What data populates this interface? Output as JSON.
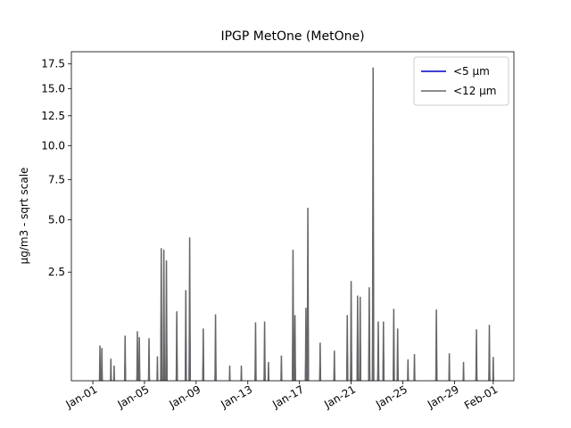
{
  "chart_data": {
    "type": "line",
    "title": "IPGP MetOne (MetOne)",
    "ylabel": "µg/m3 - sqrt scale",
    "yscale": "sqrt",
    "legend": "upper right",
    "x": [
      0.5,
      0.55,
      0.6,
      0.65,
      0.7,
      0.75,
      1.35,
      1.4,
      1.45,
      1.6,
      1.65,
      1.7,
      2.45,
      2.5,
      2.55,
      3.4,
      3.45,
      3.5,
      3.55,
      3.6,
      3.65,
      4.3,
      4.35,
      4.4,
      4.95,
      5.0,
      5.05,
      5.25,
      5.3,
      5.35,
      5.45,
      5.5,
      5.55,
      5.65,
      5.7,
      5.75,
      6.45,
      6.5,
      6.55,
      7.15,
      7.2,
      7.25,
      7.45,
      7.5,
      7.55,
      8.5,
      8.55,
      8.6,
      9.45,
      9.5,
      9.55,
      10.55,
      10.6,
      10.65,
      11.45,
      11.5,
      11.55,
      12.55,
      12.6,
      12.65,
      13.25,
      13.3,
      13.35,
      13.55,
      13.6,
      13.65,
      14.55,
      14.6,
      14.65,
      15.45,
      15.5,
      15.55,
      15.6,
      15.65,
      15.7,
      16.45,
      16.5,
      16.55,
      16.6,
      16.65,
      16.7,
      17.55,
      17.6,
      17.65,
      18.65,
      18.7,
      18.75,
      19.65,
      19.7,
      19.75,
      19.95,
      20.0,
      20.05,
      20.45,
      20.5,
      20.55,
      20.65,
      20.7,
      20.75,
      21.35,
      21.4,
      21.45,
      21.65,
      21.7,
      21.75,
      22.05,
      22.1,
      22.15,
      22.45,
      22.5,
      22.55,
      23.25,
      23.3,
      23.35,
      23.55,
      23.6,
      23.65,
      24.35,
      24.4,
      24.45,
      24.85,
      24.9,
      24.95,
      26.55,
      26.6,
      26.65,
      27.55,
      27.6,
      27.65,
      28.65,
      28.7,
      28.75,
      29.65,
      29.7,
      29.75,
      30.65,
      30.7,
      30.75,
      30.95,
      31.0,
      31.05
    ],
    "series": [
      {
        "name": "<5 µm",
        "color": "#0000cc",
        "values": [
          0,
          0.13,
          0,
          0,
          0.12,
          0,
          0,
          0.08,
          0,
          0,
          0.05,
          0,
          0,
          0.19,
          0,
          0,
          0.21,
          0,
          0,
          0.18,
          0,
          0,
          0.17,
          0,
          0,
          0.08,
          0,
          0,
          1.06,
          0,
          0,
          1.04,
          0,
          0,
          0.89,
          0,
          0,
          0.36,
          0,
          0,
          0.55,
          0,
          0,
          1.22,
          0,
          0,
          0.23,
          0,
          0,
          0.33,
          0,
          0,
          0.05,
          0,
          0,
          0.05,
          0,
          0,
          0.27,
          0,
          0,
          0.28,
          0,
          0,
          0.06,
          0,
          0,
          0.09,
          0,
          0,
          1.04,
          0,
          0,
          0.33,
          0,
          0,
          0.39,
          0,
          0,
          1.71,
          0,
          0,
          0.15,
          0,
          0,
          0.11,
          0,
          0,
          0.33,
          0,
          0,
          0.65,
          0,
          0,
          0.5,
          0,
          0,
          0.49,
          0,
          0,
          0.58,
          0,
          0,
          5.14,
          0,
          0,
          0.28,
          0,
          0,
          0.28,
          0,
          0,
          0.38,
          0,
          0,
          0.23,
          0,
          0,
          0.07,
          0,
          0,
          0.09,
          0,
          0,
          0.37,
          0,
          0,
          0.1,
          0,
          0,
          0.06,
          0,
          0,
          0.23,
          0,
          0,
          0.26,
          0,
          0,
          0.08,
          0
        ]
      },
      {
        "name": "<12 µm",
        "color": "#666666",
        "values": [
          0,
          0.44,
          0,
          0,
          0.4,
          0,
          0,
          0.25,
          0,
          0,
          0.17,
          0,
          0,
          0.62,
          0,
          0,
          0.71,
          0,
          0,
          0.59,
          0,
          0,
          0.57,
          0,
          0,
          0.28,
          0,
          0,
          3.54,
          0,
          0,
          3.46,
          0,
          0,
          2.98,
          0,
          0,
          1.19,
          0,
          0,
          1.84,
          0,
          0,
          4.06,
          0,
          0,
          0.77,
          0,
          0,
          1.11,
          0,
          0,
          0.17,
          0,
          0,
          0.17,
          0,
          0,
          0.91,
          0,
          0,
          0.93,
          0,
          0,
          0.21,
          0,
          0,
          0.29,
          0,
          0,
          3.46,
          0,
          0,
          1.09,
          0,
          0,
          1.29,
          0,
          0,
          5.69,
          0,
          0,
          0.49,
          0,
          0,
          0.36,
          0,
          0,
          1.09,
          0,
          0,
          2.16,
          0,
          0,
          1.66,
          0,
          0,
          1.62,
          0,
          0,
          1.94,
          0,
          0,
          17.14,
          0,
          0,
          0.93,
          0,
          0,
          0.93,
          0,
          0,
          1.26,
          0,
          0,
          0.77,
          0,
          0,
          0.24,
          0,
          0,
          0.31,
          0,
          0,
          1.24,
          0,
          0,
          0.32,
          0,
          0,
          0.21,
          0,
          0,
          0.75,
          0,
          0,
          0.85,
          0,
          0,
          0.27,
          0
        ]
      }
    ],
    "xlim": [
      -1.66,
      32.6
    ],
    "xticks": [
      {
        "value": 0,
        "label": "Jan-01"
      },
      {
        "value": 4,
        "label": "Jan-05"
      },
      {
        "value": 8,
        "label": "Jan-09"
      },
      {
        "value": 12,
        "label": "Jan-13"
      },
      {
        "value": 16,
        "label": "Jan-17"
      },
      {
        "value": 20,
        "label": "Jan-21"
      },
      {
        "value": 24,
        "label": "Jan-25"
      },
      {
        "value": 28,
        "label": "Jan-29"
      },
      {
        "value": 31,
        "label": "Feb-01"
      }
    ],
    "ylim": [
      0.05,
      18.8
    ],
    "yticks": [
      2.5,
      {
        "value": 5,
        "label": "5.0"
      },
      7.5,
      {
        "value": 10,
        "label": "10.0"
      },
      12.5,
      {
        "value": 15,
        "label": "15.0"
      },
      17.5
    ]
  }
}
